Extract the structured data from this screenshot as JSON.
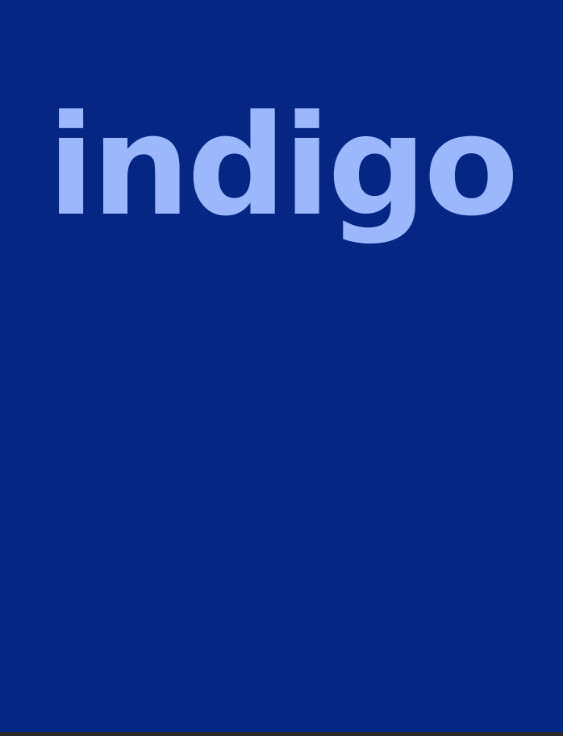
{
  "page": {
    "word": "indigo",
    "background_color": "#062684",
    "text_color": "#9bb8ff"
  }
}
